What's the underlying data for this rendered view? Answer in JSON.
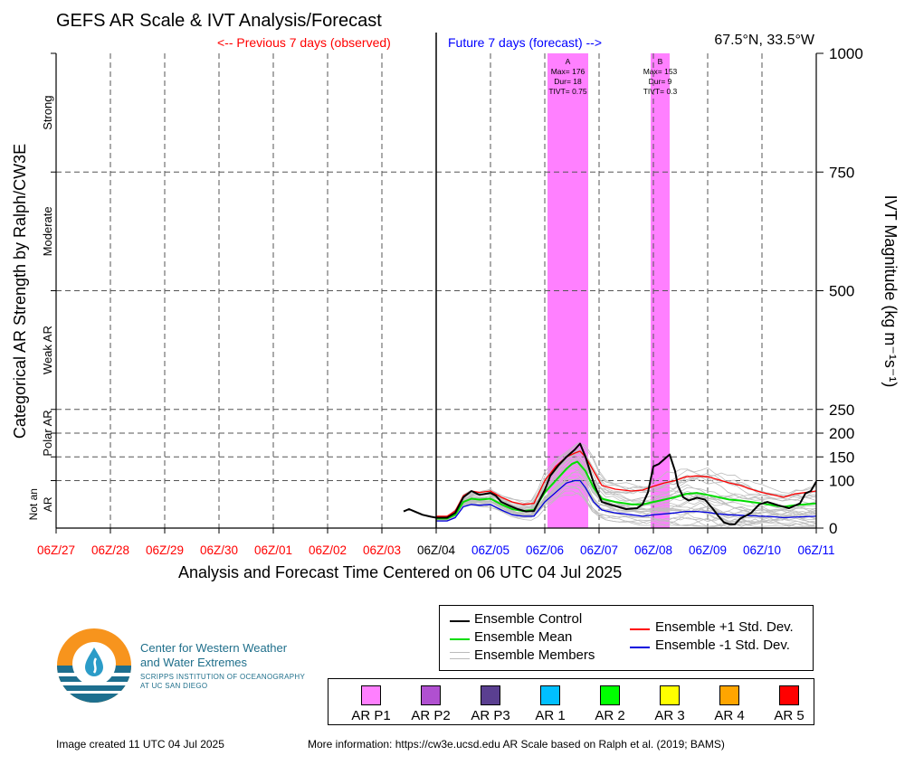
{
  "header": {
    "title": "GEFS AR Scale & IVT Analysis/Forecast",
    "previous_label": "<-- Previous 7 days (observed)",
    "future_label": "Future 7 days (forecast) -->",
    "location": "67.5°N, 33.5°W"
  },
  "chart_data": {
    "type": "line",
    "title": "GEFS AR Scale & IVT Analysis/Forecast",
    "xlabel": "Analysis and Forecast Time Centered on 06 UTC 04 Jul 2025",
    "ylabel_left": "Categorical AR Strength by Ralph/CW3E",
    "ylabel_right": "IVT Magnitude (kg m⁻¹s⁻¹)",
    "ylim": [
      0,
      1000
    ],
    "x_ticks": [
      "06Z/27",
      "06Z/28",
      "06Z/29",
      "06Z/30",
      "06Z/01",
      "06Z/02",
      "06Z/03",
      "06Z/04",
      "06Z/05",
      "06Z/06",
      "06Z/07",
      "06Z/08",
      "06Z/09",
      "06Z/10",
      "06Z/11"
    ],
    "x_tick_colors": [
      "#ff0000",
      "#ff0000",
      "#ff0000",
      "#ff0000",
      "#ff0000",
      "#ff0000",
      "#ff0000",
      "#000000",
      "#0000ff",
      "#0000ff",
      "#0000ff",
      "#0000ff",
      "#0000ff",
      "#0000ff",
      "#0000ff"
    ],
    "y_ticks": [
      0,
      100,
      150,
      200,
      250,
      500,
      750,
      1000
    ],
    "categories": [
      {
        "label": "Strong",
        "from": 750,
        "to": 1000
      },
      {
        "label": "Moderate",
        "from": 500,
        "to": 750
      },
      {
        "label": "Weak AR",
        "from": 250,
        "to": 500
      },
      {
        "label": "Polar AR",
        "from": 150,
        "to": 250
      },
      {
        "label": "Not an AR",
        "from": 0,
        "to": 100
      }
    ],
    "ar_events": [
      {
        "id": "A",
        "start_day": 9.05,
        "end_day": 9.8,
        "lines": [
          "A",
          "Max= 176",
          "Dur= 18",
          "TIVT= 0.75"
        ]
      },
      {
        "id": "B",
        "start_day": 10.95,
        "end_day": 11.3,
        "lines": [
          "B",
          "Max= 153",
          "Dur= 9",
          "TIVT= 0.3"
        ]
      }
    ],
    "series": [
      {
        "name": "Ensemble Control",
        "color": "#000000",
        "x": [
          6.4,
          6.5,
          6.6,
          6.75,
          6.9,
          7.0,
          7.2,
          7.35,
          7.5,
          7.65,
          7.8,
          8.0,
          8.1,
          8.2,
          8.35,
          8.5,
          8.65,
          8.8,
          9.0,
          9.1,
          9.25,
          9.4,
          9.55,
          9.65,
          9.75,
          9.9,
          10.05,
          10.25,
          10.5,
          10.7,
          10.8,
          10.9,
          11.0,
          11.1,
          11.2,
          11.3,
          11.4,
          11.45,
          11.55,
          11.65,
          11.8,
          11.95,
          12.1,
          12.2,
          12.3,
          12.4,
          12.5,
          12.6,
          12.8,
          12.95,
          13.1,
          13.3,
          13.5,
          13.7,
          13.8,
          13.9,
          14.0
        ],
        "y": [
          35,
          40,
          35,
          28,
          24,
          22,
          22,
          32,
          65,
          78,
          70,
          74,
          68,
          55,
          47,
          40,
          35,
          36,
          80,
          110,
          132,
          150,
          165,
          178,
          150,
          95,
          55,
          48,
          40,
          42,
          50,
          75,
          130,
          135,
          145,
          155,
          120,
          90,
          65,
          58,
          64,
          60,
          40,
          25,
          12,
          8,
          8,
          20,
          32,
          50,
          55,
          48,
          42,
          52,
          73,
          78,
          98
        ]
      },
      {
        "name": "Ensemble Mean",
        "color": "#00dd00",
        "x": [
          7.0,
          7.2,
          7.35,
          7.5,
          7.65,
          7.8,
          8.0,
          8.2,
          8.4,
          8.6,
          8.8,
          9.0,
          9.2,
          9.4,
          9.5,
          9.6,
          9.75,
          9.9,
          10.05,
          10.3,
          10.6,
          10.8,
          11.0,
          11.2,
          11.4,
          11.6,
          11.8,
          12.0,
          12.2,
          12.4,
          12.6,
          12.8,
          13.0,
          13.2,
          13.4,
          13.6,
          13.8,
          14.0
        ],
        "y": [
          20,
          20,
          28,
          55,
          62,
          60,
          62,
          50,
          40,
          36,
          38,
          75,
          100,
          125,
          135,
          140,
          120,
          85,
          62,
          55,
          50,
          50,
          55,
          60,
          65,
          72,
          74,
          70,
          65,
          60,
          58,
          55,
          52,
          48,
          45,
          48,
          50,
          52
        ]
      },
      {
        "name": "Ensemble +1 Std. Dev.",
        "color": "#ff0000",
        "x": [
          7.0,
          7.2,
          7.35,
          7.5,
          7.65,
          7.8,
          8.0,
          8.2,
          8.4,
          8.6,
          8.8,
          9.0,
          9.2,
          9.4,
          9.55,
          9.65,
          9.75,
          9.9,
          10.05,
          10.3,
          10.6,
          10.8,
          11.0,
          11.2,
          11.4,
          11.6,
          11.8,
          12.0,
          12.2,
          12.4,
          12.6,
          12.8,
          13.0,
          13.2,
          13.4,
          13.6,
          13.8,
          14.0
        ],
        "y": [
          25,
          25,
          36,
          68,
          78,
          75,
          78,
          65,
          55,
          50,
          52,
          100,
          130,
          150,
          158,
          162,
          150,
          120,
          90,
          82,
          78,
          80,
          88,
          95,
          100,
          108,
          110,
          108,
          102,
          95,
          90,
          82,
          75,
          70,
          65,
          72,
          75,
          78
        ]
      },
      {
        "name": "Ensemble -1 Std. Dev.",
        "color": "#0000dd",
        "x": [
          7.0,
          7.2,
          7.35,
          7.5,
          7.65,
          7.8,
          8.0,
          8.2,
          8.4,
          8.6,
          8.8,
          9.0,
          9.2,
          9.4,
          9.55,
          9.65,
          9.75,
          9.9,
          10.05,
          10.3,
          10.6,
          10.8,
          11.0,
          11.2,
          11.4,
          11.6,
          11.8,
          12.0,
          12.2,
          12.4,
          12.6,
          12.8,
          13.0,
          13.2,
          13.4,
          13.6,
          13.8,
          14.0
        ],
        "y": [
          15,
          15,
          22,
          45,
          50,
          48,
          50,
          38,
          28,
          25,
          25,
          55,
          75,
          95,
          100,
          100,
          85,
          55,
          38,
          32,
          28,
          25,
          28,
          30,
          32,
          35,
          35,
          33,
          30,
          28,
          27,
          26,
          25,
          24,
          22,
          23,
          24,
          25
        ]
      }
    ],
    "ensemble_members_shown": true,
    "grid": true
  },
  "legend": {
    "control": "Ensemble Control",
    "mean": "Ensemble Mean",
    "members": "Ensemble Members",
    "plus_std": "Ensemble +1 Std. Dev.",
    "minus_std": "Ensemble -1 Std. Dev.",
    "colors": {
      "control": "#000000",
      "mean": "#00dd00",
      "members": "#bbbbbb",
      "plus_std": "#ff0000",
      "minus_std": "#0000dd"
    }
  },
  "ar_categories": [
    {
      "label": "AR P1",
      "color": "#ff80ff"
    },
    {
      "label": "AR P2",
      "color": "#b050d0"
    },
    {
      "label": "AR P3",
      "color": "#5a3f90"
    },
    {
      "label": "AR 1",
      "color": "#00bfff"
    },
    {
      "label": "AR 2",
      "color": "#00ff00"
    },
    {
      "label": "AR 3",
      "color": "#ffff00"
    },
    {
      "label": "AR 4",
      "color": "#ffa500"
    },
    {
      "label": "AR 5",
      "color": "#ff0000"
    }
  ],
  "branding": {
    "org_line1": "Center for Western Weather",
    "org_line2": "and Water Extremes",
    "sub_line1": "SCRIPPS INSTITUTION OF OCEANOGRAPHY",
    "sub_line2": "AT UC SAN DIEGO"
  },
  "footer": {
    "created": "Image created 11 UTC 04 Jul 2025",
    "more_info": "More information: https://cw3e.ucsd.edu AR Scale based on Ralph et al. (2019; BAMS)"
  }
}
